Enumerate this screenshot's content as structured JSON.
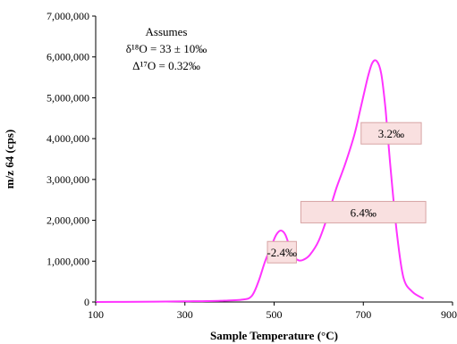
{
  "chart_data": {
    "type": "line",
    "xlabel": "Sample Temperature (°C)",
    "ylabel": "m/z 64 (cps)",
    "xlim": [
      100,
      900
    ],
    "ylim": [
      0,
      7000000
    ],
    "x_ticks": [
      100,
      300,
      500,
      700,
      900
    ],
    "y_ticks": [
      0,
      1000000,
      2000000,
      3000000,
      4000000,
      5000000,
      6000000,
      7000000
    ],
    "x_tick_labels": [
      "100",
      "300",
      "500",
      "700",
      "900"
    ],
    "y_tick_labels": [
      "0",
      "1,000,000",
      "2,000,000",
      "3,000,000",
      "4,000,000",
      "5,000,000",
      "6,000,000",
      "7,000,000"
    ],
    "grid": false,
    "line_color": "#ff33ff",
    "series": [
      {
        "x": [
          100,
          200,
          300,
          380,
          430,
          450,
          465,
          480,
          495,
          505,
          515,
          525,
          535,
          545,
          555,
          565,
          580,
          600,
          620,
          640,
          660,
          680,
          695,
          710,
          720,
          730,
          740,
          750,
          760,
          775,
          790,
          810,
          835
        ],
        "y": [
          0,
          5000,
          15000,
          30000,
          60000,
          150000,
          500000,
          1000000,
          1400000,
          1650000,
          1750000,
          1650000,
          1350000,
          1100000,
          1020000,
          1030000,
          1150000,
          1500000,
          2100000,
          2800000,
          3400000,
          4100000,
          4800000,
          5500000,
          5850000,
          5900000,
          5600000,
          4700000,
          3400000,
          1700000,
          600000,
          250000,
          80000
        ]
      }
    ],
    "annotations": {
      "note": {
        "line1": "Assumes",
        "line2": "δ¹⁸O = 33 ± 10‰",
        "line3": "Δ¹⁷O = 0.32‰"
      },
      "labels": [
        {
          "text": "-2.4‰",
          "x_from": 485,
          "x_to": 550,
          "y": 1220000
        },
        {
          "text": "6.4‰",
          "x_from": 560,
          "x_to": 840,
          "y": 2200000
        },
        {
          "text": "3.2‰",
          "x_from": 695,
          "x_to": 830,
          "y": 4130000
        }
      ],
      "label_fill": "#f9e0e0",
      "label_stroke": "#d7a4a4"
    }
  }
}
